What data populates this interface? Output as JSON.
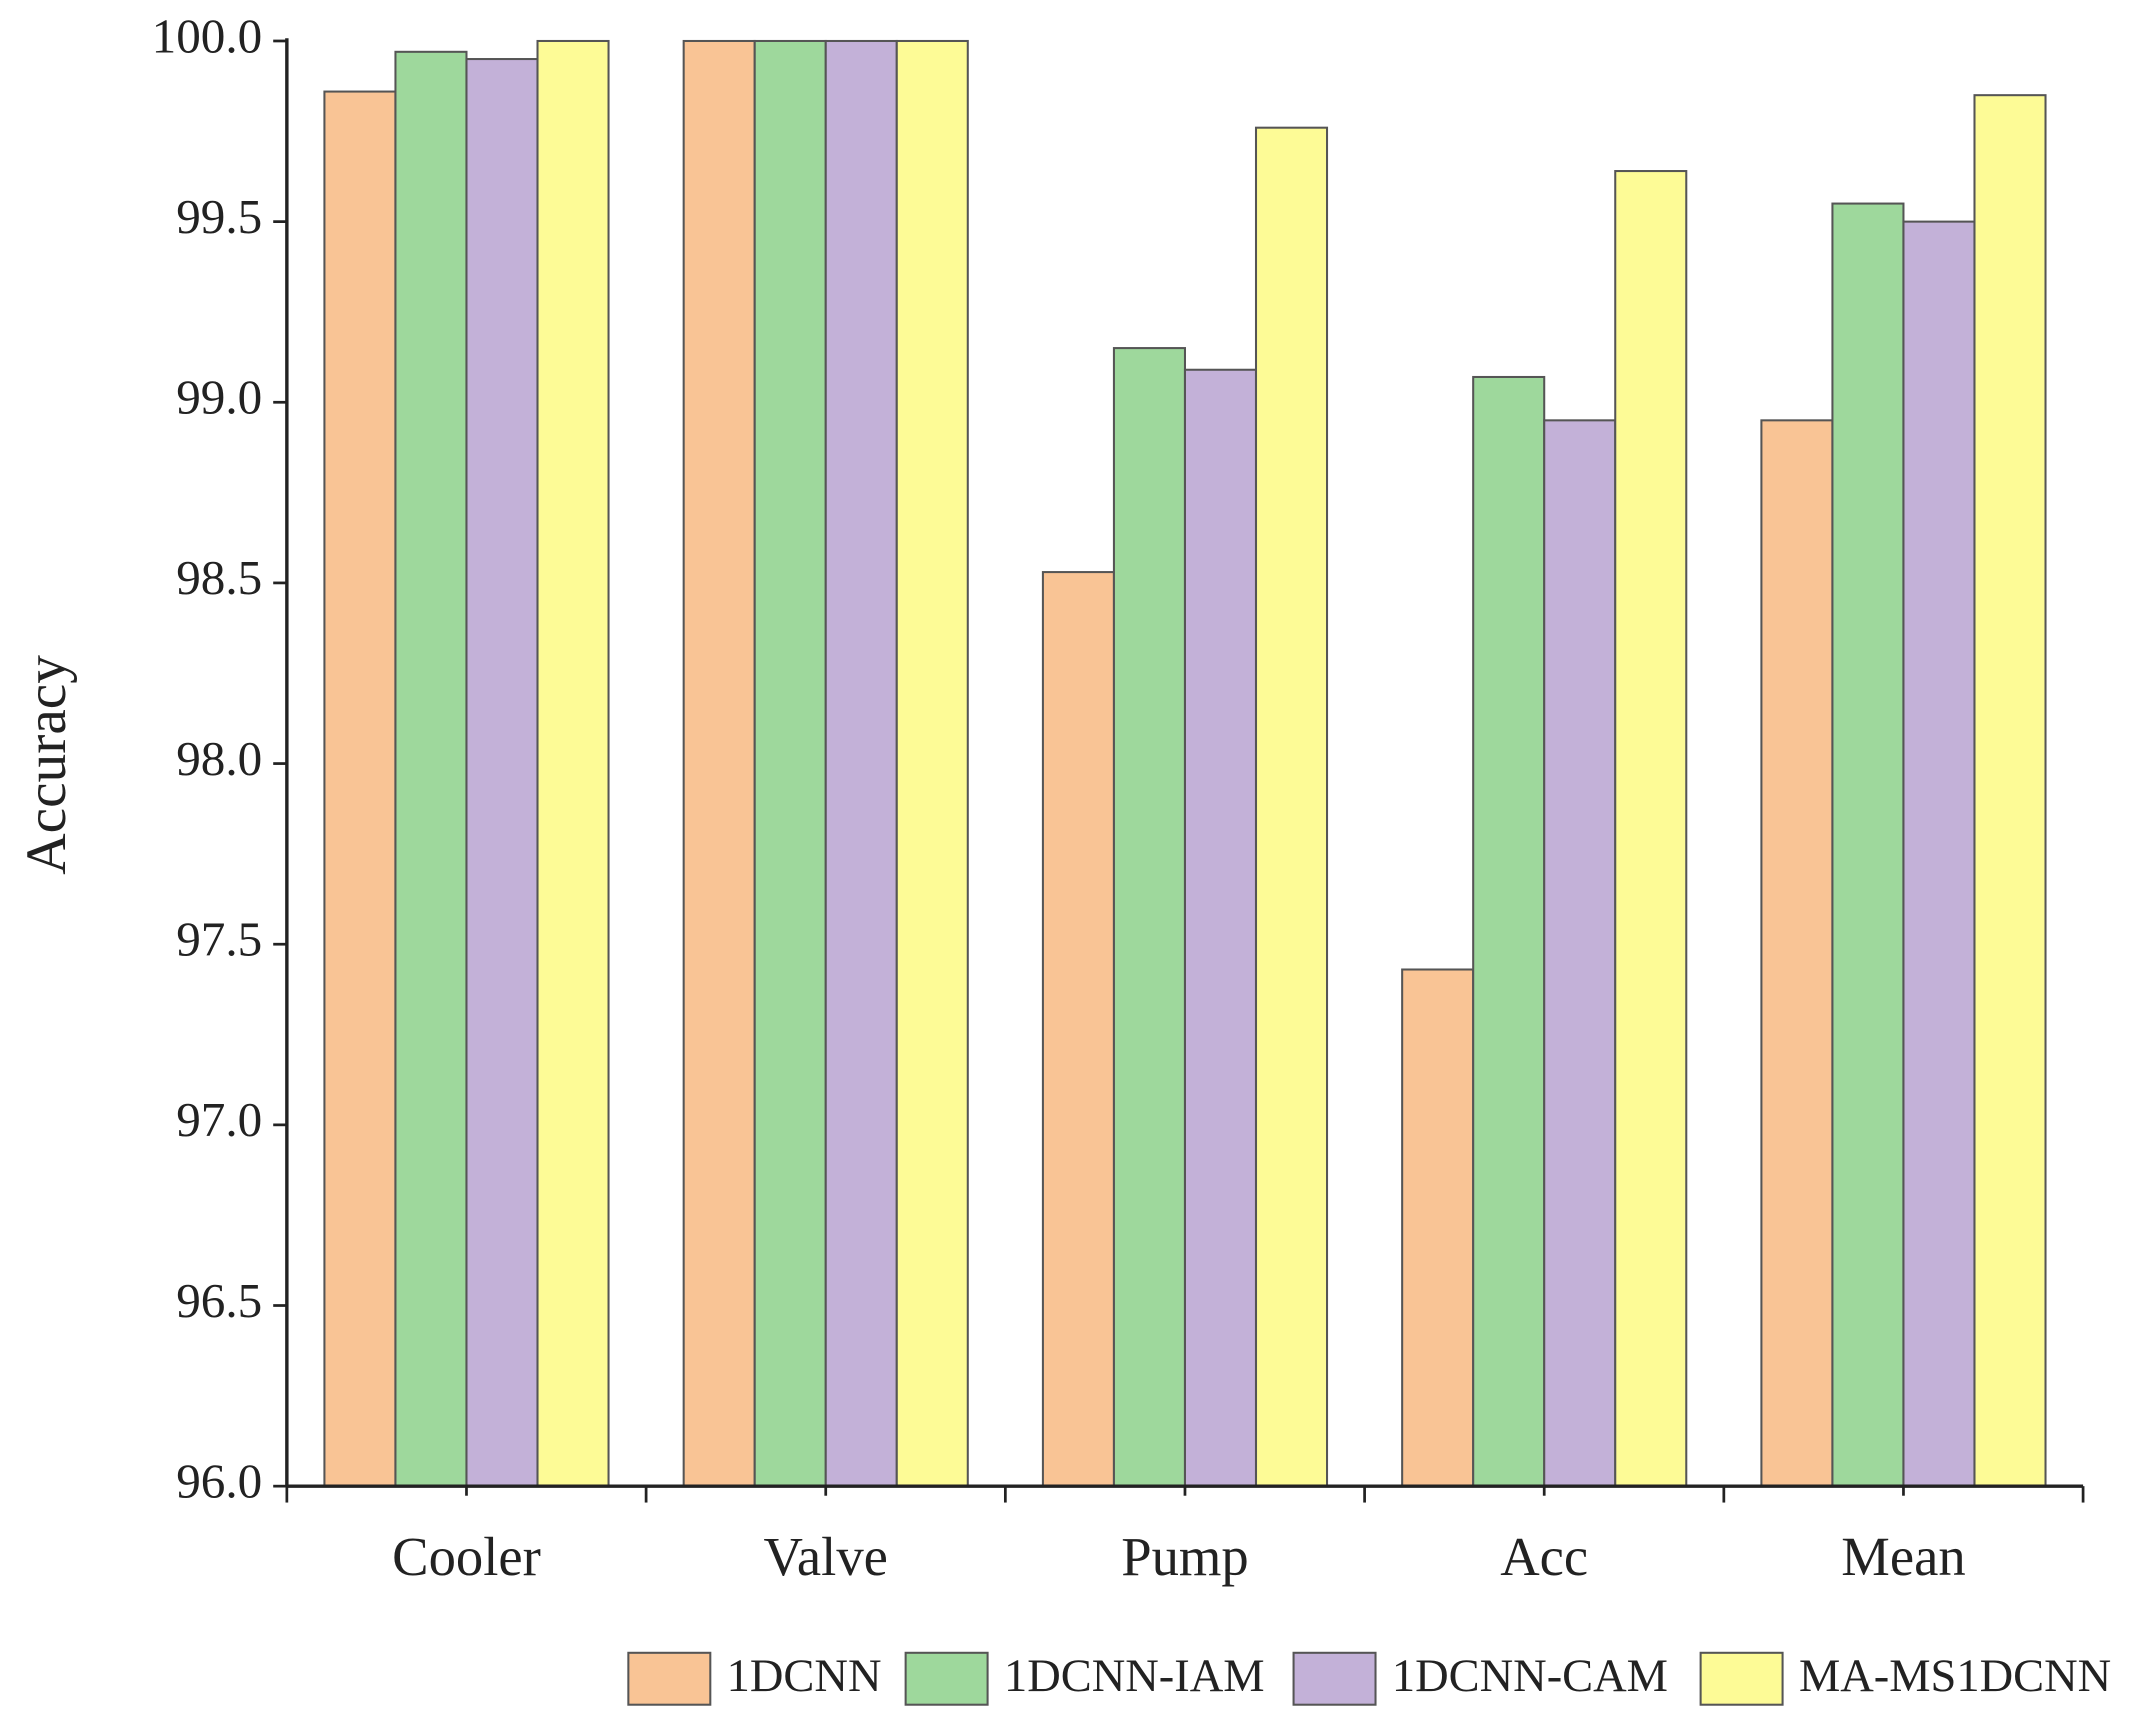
{
  "chart_data": {
    "type": "bar",
    "y_label": "Accuracy",
    "categories": [
      "Cooler",
      "Valve",
      "Pump",
      "Acc",
      "Mean"
    ],
    "series": [
      {
        "name": "1DCNN",
        "color": "#f9c495",
        "values": [
          99.86,
          100,
          98.53,
          97.43,
          98.95
        ]
      },
      {
        "name": "1DCNN-IAM",
        "color": "#9ed89c",
        "values": [
          99.97,
          100,
          99.15,
          99.07,
          99.55
        ]
      },
      {
        "name": "1DCNN-CAM",
        "color": "#c3b1d8",
        "values": [
          99.95,
          100,
          99.09,
          98.95,
          99.5
        ]
      },
      {
        "name": "MA-MS1DCNN",
        "color": "#fdfb96",
        "values": [
          100,
          100,
          99.76,
          99.64,
          99.85
        ]
      }
    ],
    "ylim": [
      96,
      100
    ],
    "yticks": [
      {
        "value": 96,
        "label": "96.0"
      },
      {
        "value": 96.5,
        "label": "96.5"
      },
      {
        "value": 97,
        "label": "97.0"
      },
      {
        "value": 97.5,
        "label": "97.5"
      },
      {
        "value": 98,
        "label": "98.0"
      },
      {
        "value": 98.5,
        "label": "98.5"
      },
      {
        "value": 99,
        "label": "99.0"
      },
      {
        "value": 99.5,
        "label": "99.5"
      },
      {
        "value": 100,
        "label": "100.0"
      }
    ],
    "legend": "bottom"
  }
}
